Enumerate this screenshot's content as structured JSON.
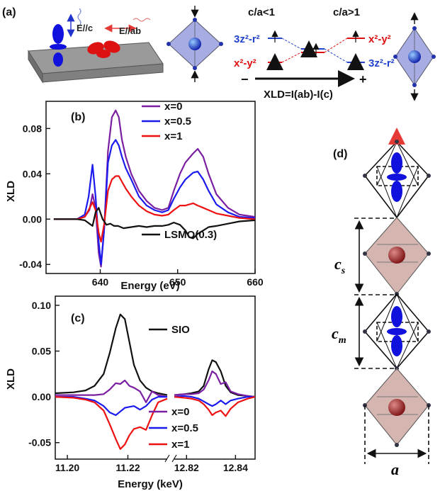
{
  "panel_a": {
    "label": "(a)",
    "e_par_c": "E//c",
    "e_par_ab": "E//ab",
    "ca_less": "c/a<1",
    "ca_greater": "c/a>1",
    "orb_3z2_left": "3z²-r²",
    "orb_x2y2_left": "x²-y²",
    "orb_x2y2_right": "x²-y²",
    "orb_3z2_right": "3z²-r²",
    "minus": "−",
    "plus": "+",
    "xld_def": "XLD=I(ab)-I(c)"
  },
  "panel_d": {
    "label": "(d)",
    "cs": "c",
    "cs_sub": "s",
    "cm": "c",
    "cm_sub": "m",
    "a": "a"
  },
  "chart_data": [
    {
      "type": "line",
      "panel_label": "(b)",
      "xlabel": "Energy (eV)",
      "ylabel": "XLD",
      "xlim": [
        633,
        660
      ],
      "ylim": [
        -0.048,
        0.104
      ],
      "xticks": [
        640,
        650,
        660
      ],
      "yticks": [
        0.08,
        0.04,
        0.0,
        -0.04
      ],
      "ytick_labels": [
        "0.08",
        "0.04",
        "0.00",
        "-0.04"
      ],
      "legend_placement": "top-center",
      "series": [
        {
          "name": "x=0",
          "color": "#7a1fa2",
          "x": [
            634,
            637,
            638,
            638.6,
            639.0,
            639.4,
            639.8,
            640.1,
            640.5,
            641.0,
            641.5,
            642.0,
            642.4,
            642.8,
            643.3,
            644.0,
            645.0,
            646.0,
            647.0,
            648.0,
            648.8,
            649.5,
            650.3,
            651.0,
            652.0,
            652.6,
            653.3,
            654.0,
            655.0,
            656.5,
            658,
            660
          ],
          "y": [
            0.0,
            0.0,
            0.002,
            0.008,
            0.022,
            0.01,
            -0.03,
            -0.042,
            -0.01,
            0.06,
            0.09,
            0.096,
            0.09,
            0.07,
            0.055,
            0.04,
            0.025,
            0.016,
            0.01,
            0.008,
            0.01,
            0.025,
            0.04,
            0.05,
            0.058,
            0.062,
            0.055,
            0.04,
            0.022,
            0.01,
            0.004,
            0.002
          ]
        },
        {
          "name": "x=0.5",
          "color": "#1a1aee",
          "x": [
            634,
            637,
            638,
            638.5,
            639.0,
            639.4,
            639.8,
            640.1,
            640.5,
            641.0,
            641.5,
            642.0,
            642.4,
            642.8,
            643.3,
            644.0,
            645.0,
            646.0,
            647.0,
            648.0,
            648.8,
            649.5,
            650.3,
            651.0,
            652.0,
            652.6,
            653.3,
            654.0,
            655.0,
            656.5,
            658,
            660
          ],
          "y": [
            0.0,
            0.0,
            0.004,
            0.02,
            0.048,
            0.02,
            -0.02,
            -0.04,
            -0.01,
            0.05,
            0.065,
            0.07,
            0.065,
            0.055,
            0.045,
            0.035,
            0.02,
            0.012,
            0.008,
            0.006,
            0.008,
            0.018,
            0.028,
            0.035,
            0.041,
            0.042,
            0.035,
            0.025,
            0.013,
            0.006,
            0.002,
            0.001
          ]
        },
        {
          "name": "x=1",
          "color": "#ee1111",
          "x": [
            634,
            637,
            638,
            638.5,
            639.0,
            639.4,
            639.8,
            640.1,
            640.5,
            641.0,
            641.5,
            642.0,
            642.4,
            642.8,
            643.3,
            644.0,
            645.0,
            646.0,
            647.0,
            648.0,
            648.8,
            649.5,
            650.3,
            651.0,
            652.0,
            652.6,
            653.3,
            654.0,
            655.0,
            656.5,
            658,
            660
          ],
          "y": [
            0.0,
            0.0,
            0.002,
            0.008,
            0.015,
            0.008,
            -0.012,
            -0.02,
            -0.005,
            0.025,
            0.035,
            0.038,
            0.038,
            0.033,
            0.027,
            0.02,
            0.012,
            0.007,
            0.004,
            0.003,
            0.004,
            0.008,
            0.012,
            0.012,
            0.014,
            0.012,
            0.01,
            0.008,
            0.005,
            0.003,
            0.001,
            0.0
          ]
        },
        {
          "name": "LSMO(0.3)",
          "color": "#111111",
          "x": [
            634,
            637,
            638,
            638.6,
            639.0,
            639.4,
            639.8,
            640.3,
            640.8,
            641.3,
            641.8,
            642.3,
            643.0,
            644.0,
            645.0,
            646.0,
            647.0,
            648.0,
            648.8,
            649.5,
            650.3,
            651.0,
            651.5,
            652.0,
            652.6,
            653.3,
            654.0,
            655.0,
            656.5,
            658,
            660
          ],
          "y": [
            0.0,
            0.0,
            -0.001,
            -0.004,
            -0.006,
            0.006,
            0.01,
            0.0,
            -0.005,
            -0.004,
            -0.006,
            -0.006,
            -0.008,
            -0.007,
            -0.006,
            -0.007,
            -0.006,
            -0.006,
            -0.005,
            -0.003,
            -0.005,
            -0.01,
            -0.016,
            -0.017,
            -0.013,
            -0.01,
            -0.007,
            -0.006,
            -0.004,
            -0.002,
            -0.001
          ]
        }
      ]
    },
    {
      "type": "line",
      "panel_label": "(c)",
      "xlabel": "Energy (keV)",
      "ylabel": "XLD",
      "x_axis_break": true,
      "segments": [
        {
          "xlim": [
            11.196,
            11.233
          ],
          "xticks": [
            11.2,
            11.22
          ]
        },
        {
          "xlim": [
            12.815,
            12.848
          ],
          "xticks": [
            12.82,
            12.84
          ]
        }
      ],
      "xtick_labels": [
        "11.20",
        "11.22",
        "12.82",
        "12.84"
      ],
      "ylim": [
        -0.068,
        0.11
      ],
      "yticks": [
        0.1,
        0.05,
        0.0,
        -0.05
      ],
      "ytick_labels": [
        "0.10",
        "0.05",
        "0.00",
        "-0.05"
      ],
      "legend_placement": "bottom-center",
      "series": [
        {
          "name": "SIO",
          "color": "#111111",
          "x1": [
            11.196,
            11.202,
            11.206,
            11.209,
            11.212,
            11.214,
            11.216,
            11.2175,
            11.219,
            11.2205,
            11.222,
            11.224,
            11.226,
            11.228,
            11.23,
            11.233
          ],
          "y1": [
            0.004,
            0.005,
            0.007,
            0.012,
            0.025,
            0.048,
            0.075,
            0.09,
            0.085,
            0.06,
            0.035,
            0.018,
            0.01,
            0.006,
            0.004,
            0.002
          ],
          "x2": [
            12.815,
            12.819,
            12.822,
            12.825,
            12.827,
            12.829,
            12.8305,
            12.832,
            12.834,
            12.836,
            12.838,
            12.841,
            12.845,
            12.848
          ],
          "y2": [
            0.002,
            0.003,
            0.004,
            0.006,
            0.012,
            0.03,
            0.04,
            0.038,
            0.028,
            0.012,
            0.005,
            0.002,
            0.001,
            0.0
          ]
        },
        {
          "name": "x=0",
          "color": "#7a1fa2",
          "x1": [
            11.196,
            11.202,
            11.206,
            11.209,
            11.212,
            11.214,
            11.216,
            11.2175,
            11.219,
            11.2205,
            11.222,
            11.224,
            11.226,
            11.228,
            11.23,
            11.233
          ],
          "y1": [
            0.002,
            0.002,
            0.002,
            0.002,
            0.003,
            0.008,
            0.015,
            0.014,
            0.018,
            0.012,
            0.01,
            0.006,
            -0.006,
            0.006,
            0.002,
            0.0
          ],
          "x2": [
            12.815,
            12.819,
            12.822,
            12.825,
            12.827,
            12.829,
            12.8305,
            12.832,
            12.834,
            12.836,
            12.838,
            12.841,
            12.845,
            12.848
          ],
          "y2": [
            0.002,
            0.003,
            0.003,
            0.004,
            0.008,
            0.018,
            0.028,
            0.025,
            0.014,
            0.016,
            0.006,
            0.003,
            0.001,
            0.0
          ]
        },
        {
          "name": "x=0.5",
          "color": "#1a1aee",
          "x1": [
            11.196,
            11.202,
            11.206,
            11.209,
            11.212,
            11.214,
            11.216,
            11.2175,
            11.219,
            11.2205,
            11.222,
            11.224,
            11.226,
            11.228,
            11.23,
            11.233
          ],
          "y1": [
            0.0,
            0.0,
            -0.002,
            -0.004,
            -0.01,
            -0.017,
            -0.02,
            -0.016,
            -0.012,
            -0.011,
            -0.01,
            -0.014,
            -0.01,
            -0.003,
            0.0,
            0.0
          ],
          "x2": [
            12.815,
            12.819,
            12.822,
            12.825,
            12.827,
            12.829,
            12.8305,
            12.832,
            12.834,
            12.836,
            12.838,
            12.841,
            12.845,
            12.848
          ],
          "y2": [
            0.0,
            0.001,
            0.0,
            -0.002,
            -0.005,
            -0.008,
            -0.01,
            -0.008,
            -0.004,
            -0.008,
            -0.004,
            -0.002,
            0.0,
            0.0
          ]
        },
        {
          "name": "x=1",
          "color": "#ee1111",
          "x1": [
            11.196,
            11.202,
            11.206,
            11.209,
            11.212,
            11.214,
            11.216,
            11.2175,
            11.219,
            11.2205,
            11.222,
            11.224,
            11.226,
            11.228,
            11.23,
            11.233
          ],
          "y1": [
            0.0,
            -0.001,
            -0.003,
            -0.006,
            -0.015,
            -0.03,
            -0.046,
            -0.057,
            -0.052,
            -0.042,
            -0.035,
            -0.033,
            -0.036,
            -0.02,
            -0.006,
            -0.002
          ],
          "x2": [
            12.815,
            12.819,
            12.822,
            12.825,
            12.827,
            12.829,
            12.8305,
            12.832,
            12.834,
            12.836,
            12.838,
            12.841,
            12.845,
            12.848
          ],
          "y2": [
            0.0,
            -0.001,
            -0.002,
            -0.004,
            -0.008,
            -0.014,
            -0.02,
            -0.017,
            -0.015,
            -0.021,
            -0.013,
            -0.006,
            -0.002,
            0.0
          ]
        }
      ]
    }
  ]
}
